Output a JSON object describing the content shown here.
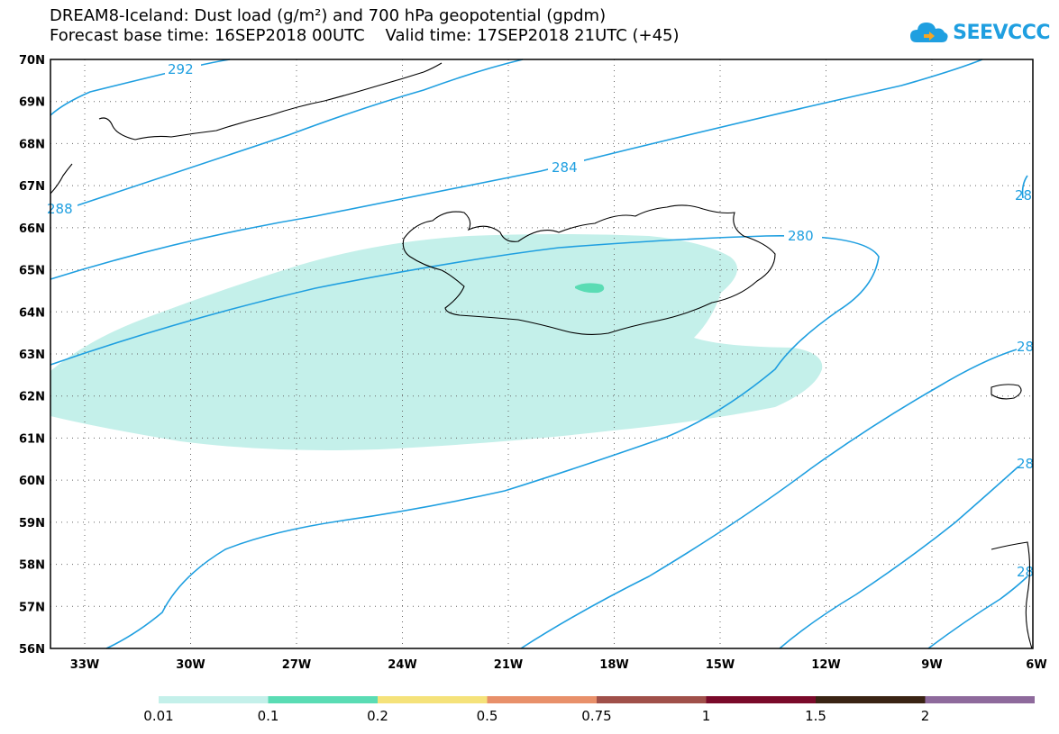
{
  "header": {
    "title_line1": "DREAM8-Iceland: Dust load (g/m²) and 700 hPa geopotential (gpdm)",
    "title_line2": "Forecast base time: 16SEP2018 00UTC    Valid time: 17SEP2018 21UTC (+45)",
    "logo_text": "SEEVCCC"
  },
  "map": {
    "lat_labels": [
      "70N",
      "69N",
      "68N",
      "67N",
      "66N",
      "65N",
      "64N",
      "63N",
      "62N",
      "61N",
      "60N",
      "59N",
      "58N",
      "57N",
      "56N"
    ],
    "lon_labels": [
      "33W",
      "30W",
      "27W",
      "24W",
      "21W",
      "18W",
      "15W",
      "12W",
      "9W",
      "6W"
    ],
    "contour_labels": [
      "292",
      "288",
      "284",
      "280",
      "28",
      "28",
      "28",
      "28"
    ],
    "contour_color": "#1f9fe0",
    "dust_light_color": "#c4f0ea",
    "dust_medium_color": "#5adcb4"
  },
  "legend": {
    "colors": [
      "#c4f0ea",
      "#5adcb4",
      "#f5e27a",
      "#e8906a",
      "#a0504a",
      "#7a0a2a",
      "#3a2414",
      "#8e6a9c"
    ],
    "labels": [
      "0.01",
      "0.1",
      "0.2",
      "0.5",
      "0.75",
      "1",
      "1.5",
      "2"
    ]
  }
}
